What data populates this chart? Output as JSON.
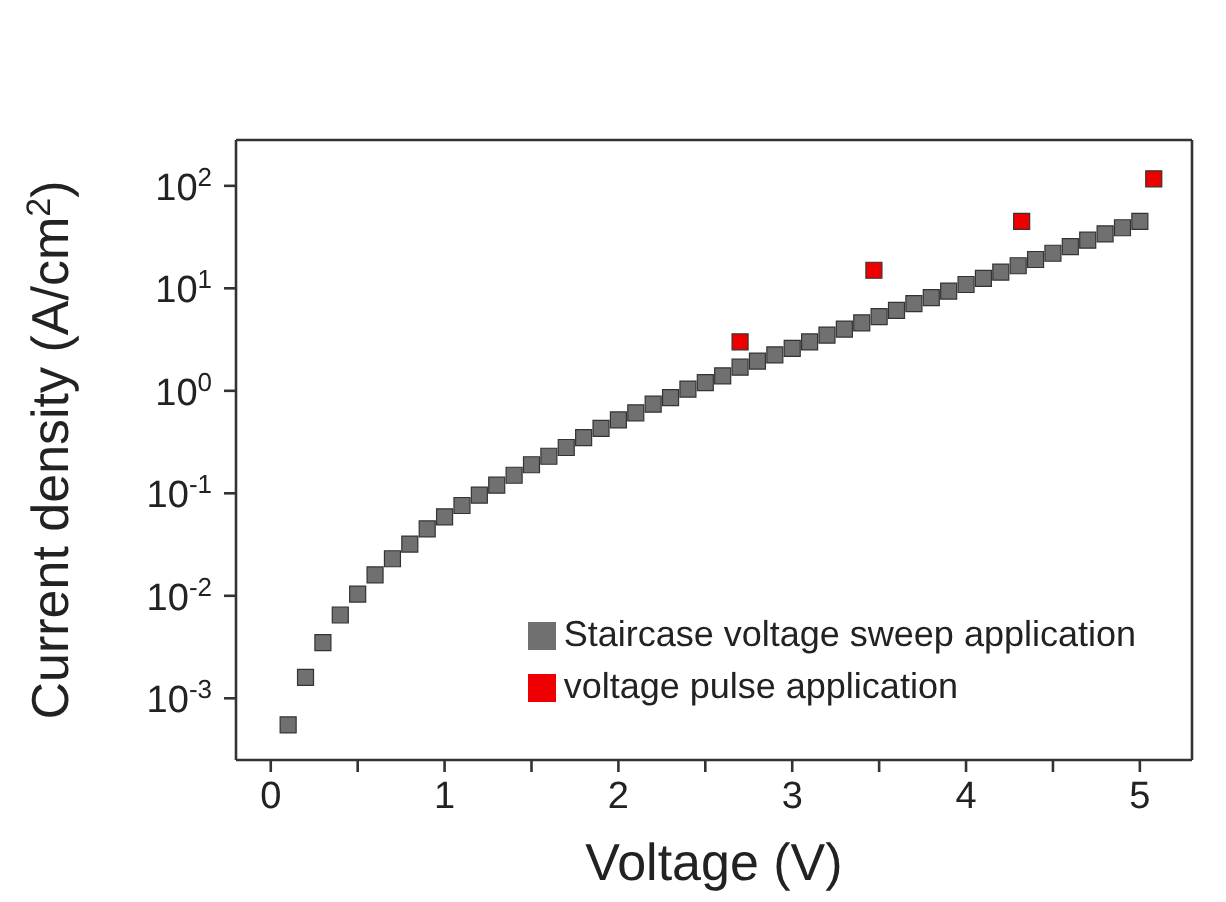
{
  "chart_data": {
    "type": "scatter",
    "xlabel": "Voltage (V)",
    "ylabel": "Current density (A/cm$^{2}$)",
    "log": "y",
    "marker": "square",
    "legend": "bottom right",
    "grid": false,
    "xlim": [
      -0.2,
      5.3
    ],
    "xticks": [
      0,
      {
        "value": 0.5,
        "label": null
      },
      1,
      {
        "value": 1.5,
        "label": null
      },
      2,
      {
        "value": 2.5,
        "label": null
      },
      3,
      {
        "value": 3.5,
        "label": null
      },
      4,
      {
        "value": 4.5,
        "label": null
      },
      5
    ],
    "ylim": [
      0.00025,
      280
    ],
    "yticks": [
      {
        "value": 0.001,
        "label": "10$^{-3}$"
      },
      {
        "value": 0.01,
        "label": "10$^{-2}$"
      },
      {
        "value": 0.1,
        "label": "10$^{-1}$"
      },
      {
        "value": 1,
        "label": "10$^{0}$"
      },
      {
        "value": 10,
        "label": "10$^{1}$"
      },
      {
        "value": 100,
        "label": "10$^{2}$"
      }
    ],
    "series": [
      {
        "name": "Staircase voltage sweep application",
        "color": "#707070",
        "x": [
          0.1,
          0.2,
          0.3,
          0.4,
          0.5,
          0.6,
          0.7,
          0.8,
          0.9,
          1.0,
          1.1,
          1.2,
          1.3,
          1.4,
          1.5,
          1.6,
          1.7,
          1.8,
          1.9,
          2.0,
          2.1,
          2.2,
          2.3,
          2.4,
          2.5,
          2.6,
          2.7,
          2.8,
          2.9,
          3.0,
          3.1,
          3.2,
          3.3,
          3.4,
          3.5,
          3.6,
          3.7,
          3.8,
          3.9,
          4.0,
          4.1,
          4.2,
          4.3,
          4.4,
          4.5,
          4.6,
          4.7,
          4.8,
          4.9,
          5.0
        ],
        "values": [
          0.00055,
          0.0016,
          0.0035,
          0.0065,
          0.0104,
          0.016,
          0.023,
          0.032,
          0.045,
          0.059,
          0.076,
          0.096,
          0.12,
          0.15,
          0.19,
          0.23,
          0.28,
          0.35,
          0.43,
          0.52,
          0.61,
          0.74,
          0.86,
          1.04,
          1.2,
          1.4,
          1.7,
          1.95,
          2.24,
          2.6,
          3.0,
          3.5,
          4.0,
          4.6,
          5.3,
          6.1,
          7.1,
          8.1,
          9.4,
          10.9,
          12.5,
          14.4,
          16.6,
          19.1,
          22,
          25.5,
          29.5,
          34,
          39,
          45
        ]
      },
      {
        "name": "voltage pulse application",
        "color": "#ee0000",
        "x": [
          2.7,
          3.47,
          4.32,
          5.08
        ],
        "values": [
          3.0,
          15,
          45,
          117
        ]
      }
    ]
  }
}
